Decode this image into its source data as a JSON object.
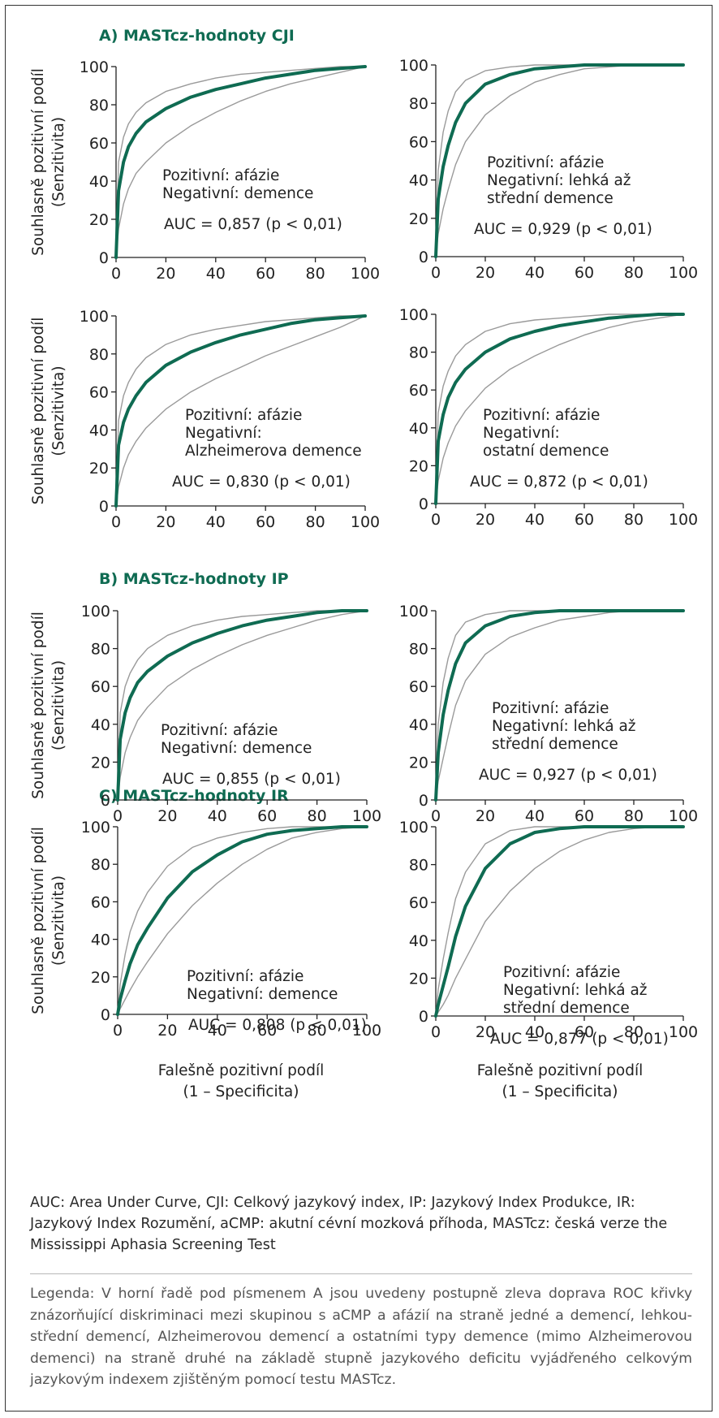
{
  "sections": [
    {
      "label": "A) MASTcz-hodnoty CJI"
    },
    {
      "label": "B) MASTcz-hodnoty IP"
    },
    {
      "label": "C) MASTcz-hodnoty IR"
    }
  ],
  "ylabel_lines": [
    "Souhlasně pozitivní podíl",
    "(Senzitivita)"
  ],
  "xlabel_lines": [
    "Falešně pozitivní podíl",
    "(1 – Specificita)"
  ],
  "colors": {
    "main_curve": "#0f6b52",
    "ci_curve": "#9a9a9a",
    "section_title": "#0f6b52"
  },
  "chart_data": [
    {
      "type": "line",
      "section": 0,
      "xlim": [
        0,
        100
      ],
      "ylim": [
        0,
        100
      ],
      "xticks": [
        0,
        20,
        40,
        60,
        80,
        100
      ],
      "yticks": [
        0,
        20,
        40,
        60,
        80,
        100
      ],
      "grid": false,
      "annotation": [
        "Pozitivní: afázie",
        "Negativní: demence"
      ],
      "auc_text": "AUC = 0,857 (p < 0,01)",
      "series": [
        {
          "role": "roc",
          "x": [
            0,
            1,
            3,
            5,
            8,
            12,
            20,
            30,
            40,
            50,
            60,
            70,
            80,
            90,
            100
          ],
          "y": [
            0,
            35,
            50,
            58,
            65,
            71,
            78,
            84,
            88,
            91,
            94,
            96,
            98,
            99,
            100
          ]
        },
        {
          "role": "ci_upper",
          "x": [
            0,
            1,
            3,
            5,
            8,
            12,
            20,
            30,
            40,
            50,
            60,
            70,
            80,
            90,
            100
          ],
          "y": [
            0,
            50,
            63,
            70,
            76,
            81,
            87,
            91,
            94,
            96,
            97,
            98,
            99,
            100,
            100
          ]
        },
        {
          "role": "ci_lower",
          "x": [
            0,
            1,
            3,
            5,
            8,
            12,
            20,
            30,
            40,
            50,
            60,
            70,
            80,
            90,
            100
          ],
          "y": [
            0,
            15,
            28,
            36,
            44,
            50,
            60,
            69,
            76,
            82,
            87,
            91,
            94,
            97,
            100
          ]
        }
      ]
    },
    {
      "type": "line",
      "section": 0,
      "xlim": [
        0,
        100
      ],
      "ylim": [
        0,
        100
      ],
      "xticks": [
        0,
        20,
        40,
        60,
        80,
        100
      ],
      "yticks": [
        0,
        20,
        40,
        60,
        80,
        100
      ],
      "grid": false,
      "annotation": [
        "Pozitivní: afázie",
        "Negativní: lehká až",
        "střední demence"
      ],
      "auc_text": "AUC = 0,929 (p < 0,01)",
      "series": [
        {
          "role": "roc",
          "x": [
            0,
            1,
            3,
            5,
            8,
            12,
            20,
            30,
            40,
            50,
            60,
            70,
            80,
            90,
            100
          ],
          "y": [
            0,
            30,
            47,
            58,
            70,
            80,
            90,
            95,
            98,
            99,
            100,
            100,
            100,
            100,
            100
          ]
        },
        {
          "role": "ci_upper",
          "x": [
            0,
            1,
            3,
            5,
            8,
            12,
            20,
            30,
            40,
            50,
            60,
            70,
            80,
            90,
            100
          ],
          "y": [
            0,
            45,
            65,
            76,
            86,
            92,
            97,
            99,
            100,
            100,
            100,
            100,
            100,
            100,
            100
          ]
        },
        {
          "role": "ci_lower",
          "x": [
            0,
            1,
            3,
            5,
            8,
            12,
            20,
            30,
            40,
            50,
            60,
            70,
            80,
            90,
            100
          ],
          "y": [
            0,
            12,
            25,
            35,
            48,
            60,
            74,
            84,
            91,
            95,
            98,
            99,
            100,
            100,
            100
          ]
        }
      ]
    },
    {
      "type": "line",
      "section": 0,
      "xlim": [
        0,
        100
      ],
      "ylim": [
        0,
        100
      ],
      "xticks": [
        0,
        20,
        40,
        60,
        80,
        100
      ],
      "yticks": [
        0,
        20,
        40,
        60,
        80,
        100
      ],
      "grid": false,
      "annotation": [
        "Pozitivní: afázie",
        "Negativní:",
        "Alzheimerova demence"
      ],
      "auc_text": "AUC = 0,830 (p < 0,01)",
      "series": [
        {
          "role": "roc",
          "x": [
            0,
            1,
            3,
            5,
            8,
            12,
            20,
            30,
            40,
            50,
            60,
            70,
            80,
            90,
            100
          ],
          "y": [
            0,
            32,
            44,
            51,
            58,
            65,
            74,
            81,
            86,
            90,
            93,
            96,
            98,
            99,
            100
          ]
        },
        {
          "role": "ci_upper",
          "x": [
            0,
            1,
            3,
            5,
            8,
            12,
            20,
            30,
            40,
            50,
            60,
            70,
            80,
            90,
            100
          ],
          "y": [
            0,
            45,
            58,
            65,
            72,
            78,
            85,
            90,
            93,
            95,
            97,
            98,
            99,
            100,
            100
          ]
        },
        {
          "role": "ci_lower",
          "x": [
            0,
            1,
            3,
            5,
            8,
            12,
            20,
            30,
            40,
            50,
            60,
            70,
            80,
            90,
            100
          ],
          "y": [
            0,
            10,
            20,
            27,
            34,
            41,
            51,
            60,
            67,
            73,
            79,
            84,
            89,
            94,
            100
          ]
        }
      ]
    },
    {
      "type": "line",
      "section": 0,
      "xlim": [
        0,
        100
      ],
      "ylim": [
        0,
        100
      ],
      "xticks": [
        0,
        20,
        40,
        60,
        80,
        100
      ],
      "yticks": [
        0,
        20,
        40,
        60,
        80,
        100
      ],
      "grid": false,
      "annotation": [
        "Pozitivní: afázie",
        "Negativní:",
        "ostatní demence"
      ],
      "auc_text": "AUC = 0,872 (p < 0,01)",
      "series": [
        {
          "role": "roc",
          "x": [
            0,
            1,
            3,
            5,
            8,
            12,
            20,
            30,
            40,
            50,
            60,
            70,
            80,
            90,
            100
          ],
          "y": [
            0,
            33,
            47,
            56,
            64,
            71,
            80,
            87,
            91,
            94,
            96,
            98,
            99,
            100,
            100
          ]
        },
        {
          "role": "ci_upper",
          "x": [
            0,
            1,
            3,
            5,
            8,
            12,
            20,
            30,
            40,
            50,
            60,
            70,
            80,
            90,
            100
          ],
          "y": [
            0,
            48,
            62,
            70,
            78,
            84,
            91,
            95,
            97,
            98,
            99,
            100,
            100,
            100,
            100
          ]
        },
        {
          "role": "ci_lower",
          "x": [
            0,
            1,
            3,
            5,
            8,
            12,
            20,
            30,
            40,
            50,
            60,
            70,
            80,
            90,
            100
          ],
          "y": [
            0,
            12,
            24,
            32,
            41,
            49,
            61,
            71,
            78,
            84,
            89,
            93,
            96,
            98,
            100
          ]
        }
      ]
    },
    {
      "type": "line",
      "section": 1,
      "xlim": [
        0,
        100
      ],
      "ylim": [
        0,
        100
      ],
      "xticks": [
        0,
        20,
        40,
        60,
        80,
        100
      ],
      "yticks": [
        0,
        20,
        40,
        60,
        80,
        100
      ],
      "grid": false,
      "annotation": [
        "Pozitivní: afázie",
        "Negativní: demence"
      ],
      "auc_text": "AUC = 0,855 (p < 0,01)",
      "series": [
        {
          "role": "roc",
          "x": [
            0,
            1,
            3,
            5,
            8,
            12,
            20,
            30,
            40,
            50,
            60,
            70,
            80,
            90,
            100
          ],
          "y": [
            0,
            32,
            46,
            54,
            62,
            68,
            76,
            83,
            88,
            92,
            95,
            97,
            99,
            100,
            100
          ]
        },
        {
          "role": "ci_upper",
          "x": [
            0,
            1,
            3,
            5,
            8,
            12,
            20,
            30,
            40,
            50,
            60,
            70,
            80,
            90,
            100
          ],
          "y": [
            0,
            46,
            60,
            67,
            74,
            80,
            87,
            92,
            95,
            97,
            98,
            99,
            100,
            100,
            100
          ]
        },
        {
          "role": "ci_lower",
          "x": [
            0,
            1,
            3,
            5,
            8,
            12,
            20,
            30,
            40,
            50,
            60,
            70,
            80,
            90,
            100
          ],
          "y": [
            0,
            12,
            25,
            33,
            42,
            49,
            60,
            69,
            76,
            82,
            87,
            91,
            95,
            98,
            100
          ]
        }
      ]
    },
    {
      "type": "line",
      "section": 1,
      "xlim": [
        0,
        100
      ],
      "ylim": [
        0,
        100
      ],
      "xticks": [
        0,
        20,
        40,
        60,
        80,
        100
      ],
      "yticks": [
        0,
        20,
        40,
        60,
        80,
        100
      ],
      "grid": false,
      "annotation": [
        "Pozitivní: afázie",
        "Negativní: lehká až",
        "střední demence"
      ],
      "auc_text": "AUC = 0,927 (p < 0,01)",
      "series": [
        {
          "role": "roc",
          "x": [
            0,
            1,
            3,
            5,
            8,
            12,
            20,
            30,
            40,
            50,
            60,
            70,
            80,
            90,
            100
          ],
          "y": [
            0,
            25,
            45,
            58,
            72,
            83,
            92,
            97,
            99,
            100,
            100,
            100,
            100,
            100,
            100
          ]
        },
        {
          "role": "ci_upper",
          "x": [
            0,
            1,
            3,
            5,
            8,
            12,
            20,
            30,
            40,
            50,
            60,
            70,
            80,
            90,
            100
          ],
          "y": [
            0,
            40,
            62,
            75,
            87,
            94,
            98,
            100,
            100,
            100,
            100,
            100,
            100,
            100,
            100
          ]
        },
        {
          "role": "ci_lower",
          "x": [
            0,
            1,
            3,
            5,
            8,
            12,
            20,
            30,
            40,
            50,
            60,
            70,
            80,
            90,
            100
          ],
          "y": [
            0,
            10,
            22,
            34,
            50,
            63,
            77,
            86,
            91,
            95,
            97,
            99,
            100,
            100,
            100
          ]
        }
      ]
    },
    {
      "type": "line",
      "section": 2,
      "xlim": [
        0,
        100
      ],
      "ylim": [
        0,
        100
      ],
      "xticks": [
        0,
        20,
        40,
        60,
        80,
        100
      ],
      "yticks": [
        0,
        20,
        40,
        60,
        80,
        100
      ],
      "grid": false,
      "annotation": [
        "Pozitivní: afázie",
        "Negativní: demence"
      ],
      "auc_text": "AUC = 0,808 (p < 0,01)",
      "series": [
        {
          "role": "roc",
          "x": [
            0,
            1,
            3,
            5,
            8,
            12,
            20,
            30,
            40,
            50,
            60,
            70,
            80,
            90,
            100
          ],
          "y": [
            0,
            8,
            18,
            27,
            37,
            46,
            62,
            76,
            85,
            92,
            96,
            98,
            99,
            100,
            100
          ]
        },
        {
          "role": "ci_upper",
          "x": [
            0,
            1,
            3,
            5,
            8,
            12,
            20,
            30,
            40,
            50,
            60,
            70,
            80,
            90,
            100
          ],
          "y": [
            0,
            16,
            32,
            44,
            55,
            65,
            79,
            89,
            94,
            97,
            99,
            100,
            100,
            100,
            100
          ]
        },
        {
          "role": "ci_lower",
          "x": [
            0,
            1,
            3,
            5,
            8,
            12,
            20,
            30,
            40,
            50,
            60,
            70,
            80,
            90,
            100
          ],
          "y": [
            0,
            3,
            8,
            13,
            20,
            28,
            43,
            58,
            70,
            80,
            88,
            94,
            97,
            99,
            100
          ]
        }
      ]
    },
    {
      "type": "line",
      "section": 2,
      "xlim": [
        0,
        100
      ],
      "ylim": [
        0,
        100
      ],
      "xticks": [
        0,
        20,
        40,
        60,
        80,
        100
      ],
      "yticks": [
        0,
        20,
        40,
        60,
        80,
        100
      ],
      "grid": false,
      "annotation": [
        "Pozitivní: afázie",
        "Negativní: lehká až",
        "střední demence"
      ],
      "auc_text": "AUC = 0,877 (p < 0,01)",
      "series": [
        {
          "role": "roc",
          "x": [
            0,
            1,
            3,
            5,
            8,
            12,
            20,
            30,
            40,
            50,
            60,
            70,
            80,
            90,
            100
          ],
          "y": [
            0,
            6,
            16,
            26,
            42,
            58,
            78,
            91,
            97,
            99,
            100,
            100,
            100,
            100,
            100
          ]
        },
        {
          "role": "ci_upper",
          "x": [
            0,
            1,
            3,
            5,
            8,
            12,
            20,
            30,
            40,
            50,
            60,
            70,
            80,
            90,
            100
          ],
          "y": [
            0,
            14,
            30,
            44,
            62,
            76,
            91,
            98,
            100,
            100,
            100,
            100,
            100,
            100,
            100
          ]
        },
        {
          "role": "ci_lower",
          "x": [
            0,
            1,
            3,
            5,
            8,
            12,
            20,
            30,
            40,
            50,
            60,
            70,
            80,
            90,
            100
          ],
          "y": [
            0,
            2,
            6,
            11,
            20,
            30,
            50,
            66,
            78,
            87,
            93,
            97,
            99,
            100,
            100
          ]
        }
      ]
    }
  ],
  "caption_text": "AUC: Area Under Curve, CJI: Celkový jazykový index, IP: Jazykový Index Produkce, IR: Jazykový Index Rozumění, aCMP: akutní cévní mozková příhoda, MASTcz: česká verze the Mississippi Aphasia Screening Test",
  "legend_text": "Legenda: V horní řadě pod písmenem A jsou uvedeny postupně zleva doprava ROC křivky znázorňující diskriminaci mezi skupinou s aCMP a afázií na straně jedné a demencí, lehkou-střední demencí, Alzheimerovou demencí a ostatními typy demence (mimo Alzheimerovou demenci) na straně druhé na základě stupně jazykového deficitu vyjádřeného celkovým jazykovým indexem zjištěným pomocí testu MASTcz."
}
